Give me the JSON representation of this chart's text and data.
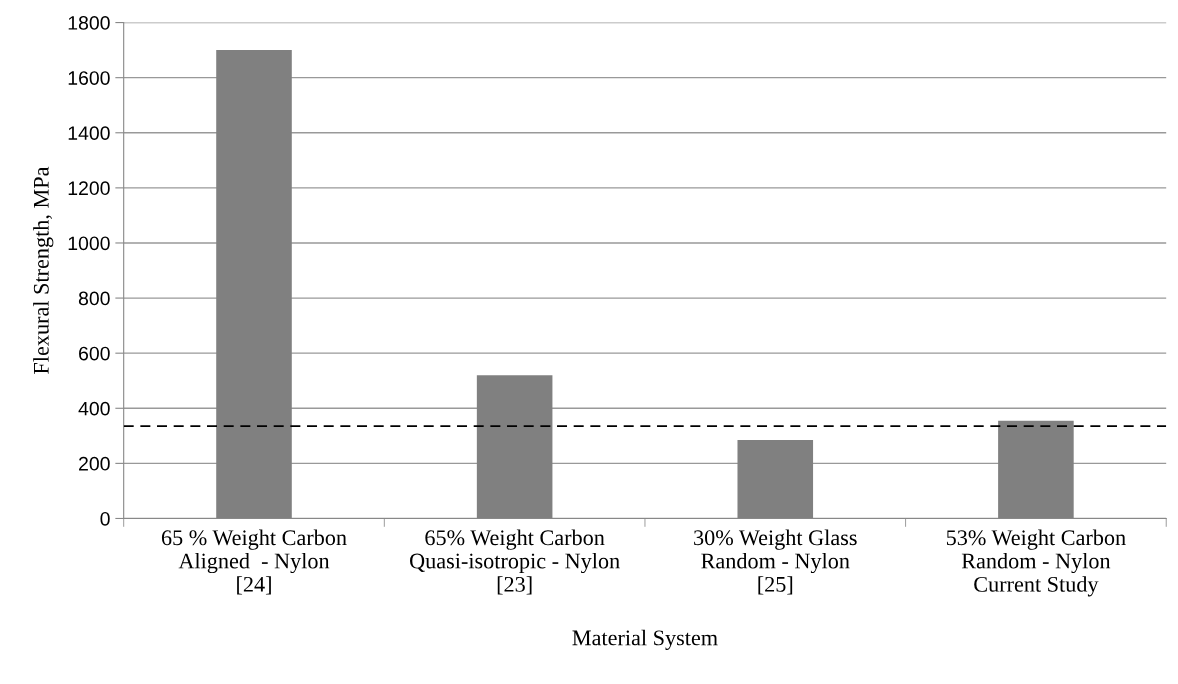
{
  "chart_data": {
    "type": "bar",
    "categories": [
      "65 % Weight Carbon\nAligned  - Nylon\n[24]",
      "65% Weight Carbon\nQuasi-isotropic - Nylon\n[23]",
      "30% Weight Glass\nRandom - Nylon\n[25]",
      "53% Weight Carbon\nRandom - Nylon\nCurrent Study"
    ],
    "values": [
      1700,
      520,
      285,
      355
    ],
    "color": "#808080",
    "xlabel": "Material System",
    "ylabel": "Flexural Strength, MPa",
    "ylim": [
      0,
      1800
    ],
    "yticks": [
      0,
      200,
      400,
      600,
      800,
      1000,
      1200,
      1400,
      1600,
      1800
    ],
    "grid": "y",
    "ref_lines": [
      {
        "axis": "y",
        "value": 335,
        "color": "#000000",
        "line_style": "dashed"
      }
    ]
  }
}
